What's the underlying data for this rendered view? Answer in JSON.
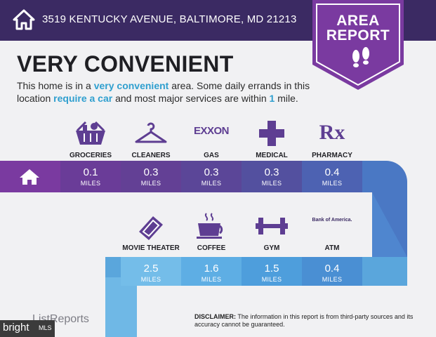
{
  "header": {
    "address": "3519 KENTUCKY AVENUE, BALTIMORE, MD 21213"
  },
  "ribbon": {
    "line1": "AREA",
    "line2": "REPORT"
  },
  "title": "VERY CONVENIENT",
  "description": {
    "p1": "This home is in a ",
    "h1": "very convenient",
    "p2": " area. Some daily errands in this location ",
    "h2": "require a car",
    "p3": " and most major services are within ",
    "h3": "1",
    "p4": " mile."
  },
  "row1": [
    {
      "label": "GROCERIES",
      "icon": "grocery-basket-icon",
      "value": "0.1",
      "unit": "MILES"
    },
    {
      "label": "CLEANERS",
      "icon": "hanger-icon",
      "value": "0.3",
      "unit": "MILES"
    },
    {
      "label": "GAS",
      "icon": "exxon-logo",
      "logo_text": "EXXON",
      "value": "0.3",
      "unit": "MILES"
    },
    {
      "label": "MEDICAL",
      "icon": "medical-cross-icon",
      "value": "0.3",
      "unit": "MILES"
    },
    {
      "label": "PHARMACY",
      "icon": "rx-icon",
      "logo_text": "Rx",
      "value": "0.4",
      "unit": "MILES"
    }
  ],
  "row2": [
    {
      "label": "MOVIE THEATER",
      "icon": "ticket-icon",
      "value": "2.5",
      "unit": "MILES"
    },
    {
      "label": "COFFEE",
      "icon": "coffee-cup-icon",
      "value": "1.6",
      "unit": "MILES"
    },
    {
      "label": "GYM",
      "icon": "dumbbell-icon",
      "value": "1.5",
      "unit": "MILES"
    },
    {
      "label": "ATM",
      "icon": "bank-of-america-logo",
      "logo_text": "Bank of America.",
      "value": "0.4",
      "unit": "MILES"
    }
  ],
  "footer": {
    "logo": "ListReports",
    "mls_brand": "bright",
    "mls_suffix": "MLS",
    "disclaimer_bold": "DISCLAIMER:",
    "disclaimer_text": " The information in this report is from third-party sources and its accuracy cannot be guaranteed."
  },
  "colors": {
    "header": "#3b2a63",
    "ribbon": "#7a3aa0",
    "highlight": "#2f9fcf",
    "band_purple": "#5e3e92",
    "band_blue": "#5aa6dc"
  }
}
